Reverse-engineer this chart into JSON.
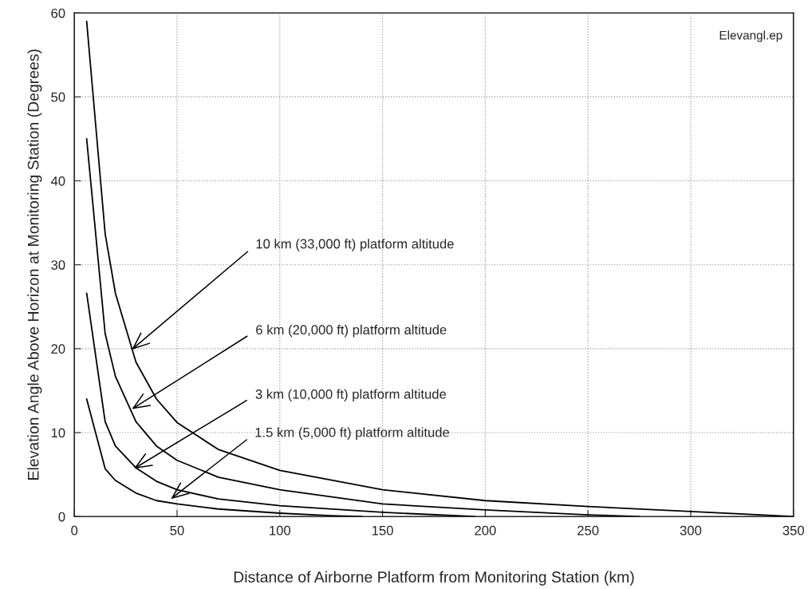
{
  "chart_data": {
    "type": "line",
    "xlabel": "Distance of Airborne Platform from Monitoring Station (km)",
    "ylabel": "Elevation Angle Above Horizon at Monitoring Station (Degrees)",
    "series": [
      {
        "color": "#000000",
        "x": [
          6,
          15,
          20,
          30,
          40,
          50,
          70,
          100,
          150,
          200,
          250,
          300,
          350
        ],
        "values": [
          59.0,
          33.7,
          26.6,
          18.4,
          14.0,
          11.2,
          8.0,
          5.5,
          3.2,
          1.9,
          1.2,
          0.6,
          0.0
        ]
      },
      {
        "color": "#000000",
        "x": [
          6,
          15,
          20,
          30,
          40,
          50,
          70,
          100,
          150,
          200,
          250,
          275
        ],
        "values": [
          45.0,
          21.8,
          16.7,
          11.3,
          8.4,
          6.7,
          4.7,
          3.2,
          1.5,
          0.8,
          0.2,
          0.0
        ]
      },
      {
        "color": "#000000",
        "x": [
          6,
          15,
          20,
          30,
          40,
          50,
          70,
          100,
          150,
          195
        ],
        "values": [
          26.6,
          11.3,
          8.4,
          5.8,
          4.2,
          3.2,
          2.1,
          1.3,
          0.5,
          0.0
        ]
      },
      {
        "color": "#000000",
        "x": [
          6,
          15,
          20,
          30,
          40,
          50,
          70,
          100,
          125,
          140
        ],
        "values": [
          14.0,
          5.7,
          4.3,
          2.8,
          1.9,
          1.5,
          0.9,
          0.4,
          0.1,
          0.0
        ]
      }
    ],
    "annotations": [
      {
        "text": "10 km (33,000 ft) platform altitude",
        "x": 28,
        "y": 19.9
      },
      {
        "text": "6 km (20,000 ft) platform altitude",
        "x": 28,
        "y": 12.8
      },
      {
        "text": "3 km (10,000 ft) platform altitude",
        "x": 29,
        "y": 5.7
      },
      {
        "text": "1.5 km (5,000 ft) platform altitude",
        "x": 47,
        "y": 2.1
      },
      "Elevangl.ep"
    ],
    "xlim": [
      0,
      350
    ],
    "xticks": [
      0,
      50,
      100,
      150,
      200,
      250,
      300,
      350
    ],
    "ylim": [
      0,
      60
    ],
    "yticks": [
      0,
      10,
      20,
      30,
      40,
      50,
      60
    ],
    "grid": true,
    "line_style": "solid"
  }
}
